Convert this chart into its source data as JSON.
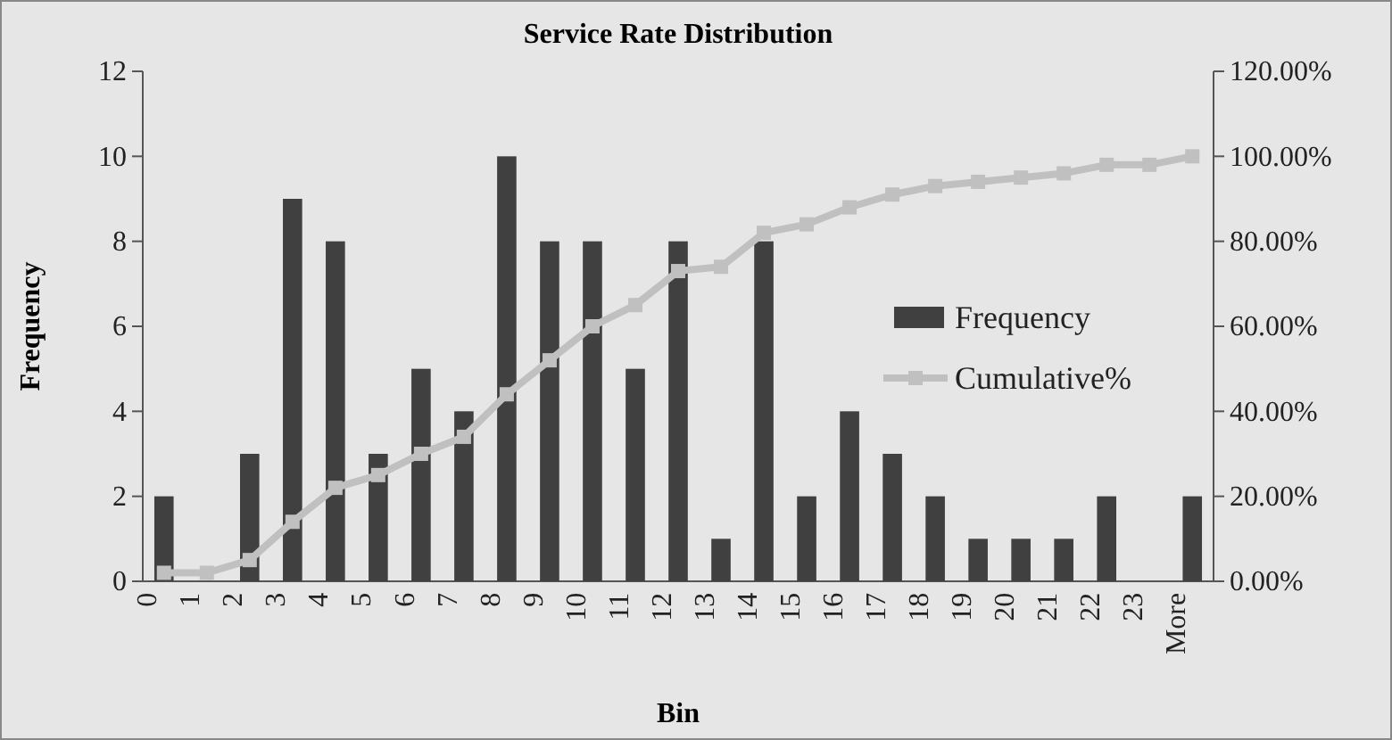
{
  "chart_data": {
    "type": "bar",
    "title": "Service Rate Distribution",
    "xlabel": "Bin",
    "ylabel": "Frequency",
    "categories": [
      "0",
      "1",
      "2",
      "3",
      "4",
      "5",
      "6",
      "7",
      "8",
      "9",
      "10",
      "11",
      "12",
      "13",
      "14",
      "15",
      "16",
      "17",
      "18",
      "19",
      "20",
      "21",
      "22",
      "23",
      "More"
    ],
    "series": [
      {
        "name": "Frequency",
        "color": "#404040",
        "values": [
          2,
          0,
          3,
          9,
          8,
          3,
          5,
          4,
          10,
          8,
          8,
          5,
          8,
          1,
          8,
          2,
          4,
          3,
          2,
          1,
          1,
          1,
          2,
          0,
          2
        ]
      },
      {
        "name": "Cumulative%",
        "type": "line",
        "axis": "y2",
        "color": "#c0c0c0",
        "marker": "square",
        "values": [
          2,
          2,
          5,
          14,
          22,
          25,
          30,
          34,
          44,
          52,
          60,
          65,
          73,
          74,
          82,
          84,
          88,
          91,
          93,
          94,
          95,
          96,
          98,
          98,
          100
        ]
      }
    ],
    "ylim": [
      0,
      12
    ],
    "yticks": [
      0,
      2,
      4,
      6,
      8,
      10,
      12
    ],
    "y2lim": [
      0,
      120
    ],
    "y2ticks": [
      {
        "value": 0,
        "label": "0.00%"
      },
      {
        "value": 20,
        "label": "20.00%"
      },
      {
        "value": 40,
        "label": "40.00%"
      },
      {
        "value": 60,
        "label": "60.00%"
      },
      {
        "value": 80,
        "label": "80.00%"
      },
      {
        "value": 100,
        "label": "100.00%"
      },
      {
        "value": 120,
        "label": "120.00%"
      }
    ],
    "grid": false,
    "legend": "right"
  }
}
